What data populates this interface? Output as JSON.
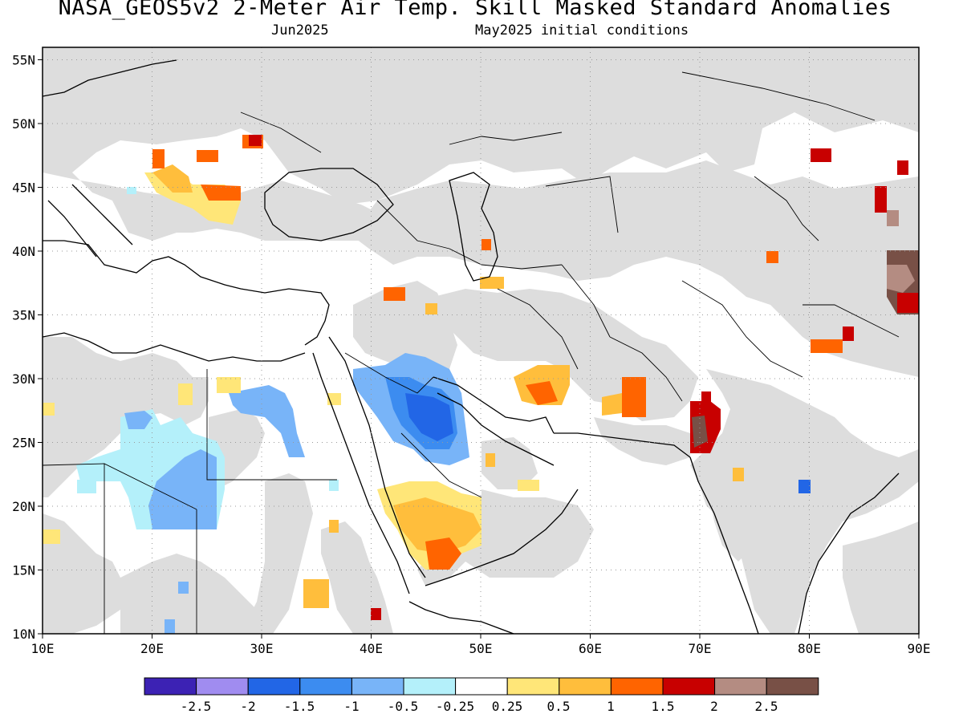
{
  "title": "NASA_GEOS5v2 2-Meter Air Temp. Skill Masked Standard Anomalies",
  "subtitle_left": "Jun2025",
  "subtitle_right": "May2025 initial conditions",
  "map": {
    "lon_range": [
      10,
      90
    ],
    "lat_range": [
      10,
      56
    ],
    "lon_ticks": [
      "10E",
      "20E",
      "30E",
      "40E",
      "50E",
      "60E",
      "70E",
      "80E",
      "90E"
    ],
    "lat_ticks": [
      "10N",
      "15N",
      "20N",
      "25N",
      "30N",
      "35N",
      "40N",
      "45N",
      "50N",
      "55N"
    ],
    "grid": "dotted",
    "masked_color": "#dddddd",
    "land_color": "#ffffff"
  },
  "colorbar": {
    "labels": [
      "-2.5",
      "-2",
      "-1.5",
      "-1",
      "-0.5",
      "-0.25",
      "0.25",
      "0.5",
      "1",
      "1.5",
      "2",
      "2.5"
    ],
    "colors": [
      "#3c22b4",
      "#a08cf0",
      "#2266e6",
      "#3c8cf0",
      "#78b4f8",
      "#b4f0fa",
      "#ffffff",
      "#ffe678",
      "#ffbe3c",
      "#ff6400",
      "#c80000",
      "#b48c82",
      "#785046"
    ]
  },
  "chart_data": {
    "type": "heatmap",
    "title": "NASA_GEOS5v2 2-Meter Air Temp. Skill Masked Standard Anomalies",
    "subtitle": "Jun2025 / May2025 initial conditions",
    "xlabel": "",
    "ylabel": "",
    "xlim": [
      10,
      90
    ],
    "ylim": [
      10,
      56
    ],
    "cells": [
      {
        "lon": [
          44,
          48
        ],
        "lat": [
          23,
          30
        ],
        "value": -1.2
      },
      {
        "lon": [
          45,
          48
        ],
        "lat": [
          24,
          27
        ],
        "value": -1.6
      },
      {
        "lon": [
          44,
          47
        ],
        "lat": [
          28,
          31
        ],
        "value": -0.8
      },
      {
        "lon": [
          18,
          26
        ],
        "lat": [
          17,
          24
        ],
        "value": -0.9
      },
      {
        "lon": [
          28,
          34
        ],
        "lat": [
          24,
          28
        ],
        "value": -0.8
      },
      {
        "lon": [
          42,
          50
        ],
        "lat": [
          15,
          21
        ],
        "value": 0.7
      },
      {
        "lon": [
          44,
          47
        ],
        "lat": [
          15,
          18
        ],
        "value": 1.2
      },
      {
        "lon": [
          63,
          65
        ],
        "lat": [
          27,
          30
        ],
        "value": 1.3
      },
      {
        "lon": [
          69,
          71
        ],
        "lat": [
          24,
          29
        ],
        "value": 1.8
      },
      {
        "lon": [
          53,
          57
        ],
        "lat": [
          27,
          30
        ],
        "value": 1.0
      },
      {
        "lon": [
          24,
          29
        ],
        "lat": [
          42,
          45
        ],
        "value": 0.6
      },
      {
        "lon": [
          87,
          90
        ],
        "lat": [
          36,
          40
        ],
        "value": 2.6
      },
      {
        "lon": [
          86,
          87
        ],
        "lat": [
          43,
          45
        ],
        "value": 1.7
      },
      {
        "lon": [
          80,
          82
        ],
        "lat": [
          47,
          48
        ],
        "value": 1.7
      },
      {
        "lon": [
          80,
          83
        ],
        "lat": [
          32,
          34
        ],
        "value": 1.2
      }
    ]
  }
}
